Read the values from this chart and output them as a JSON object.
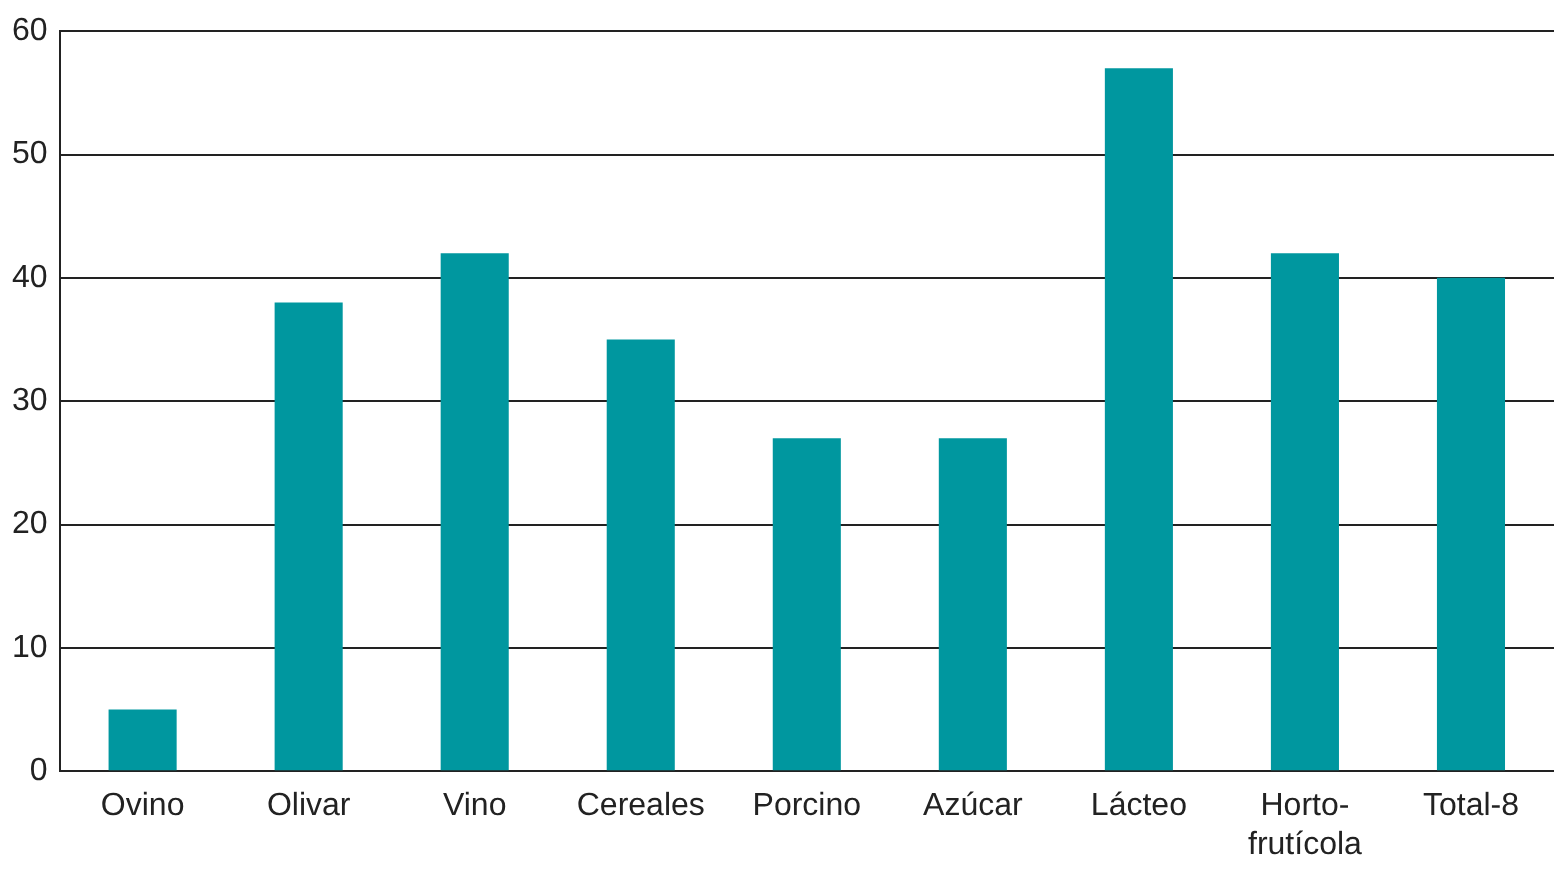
{
  "chart_data": {
    "type": "bar",
    "categories": [
      "Ovino",
      "Olivar",
      "Vino",
      "Cereales",
      "Porcino",
      "Azúcar",
      "Lácteo",
      "Horto-\nfrutícola",
      "Total-8"
    ],
    "values": [
      5,
      38,
      42,
      35,
      27,
      27,
      57,
      42,
      40
    ],
    "color": "#00979f",
    "ylim": [
      0,
      60
    ],
    "yticks": [
      0,
      10,
      20,
      30,
      40,
      50,
      60
    ],
    "grid": "y",
    "legend": false
  }
}
